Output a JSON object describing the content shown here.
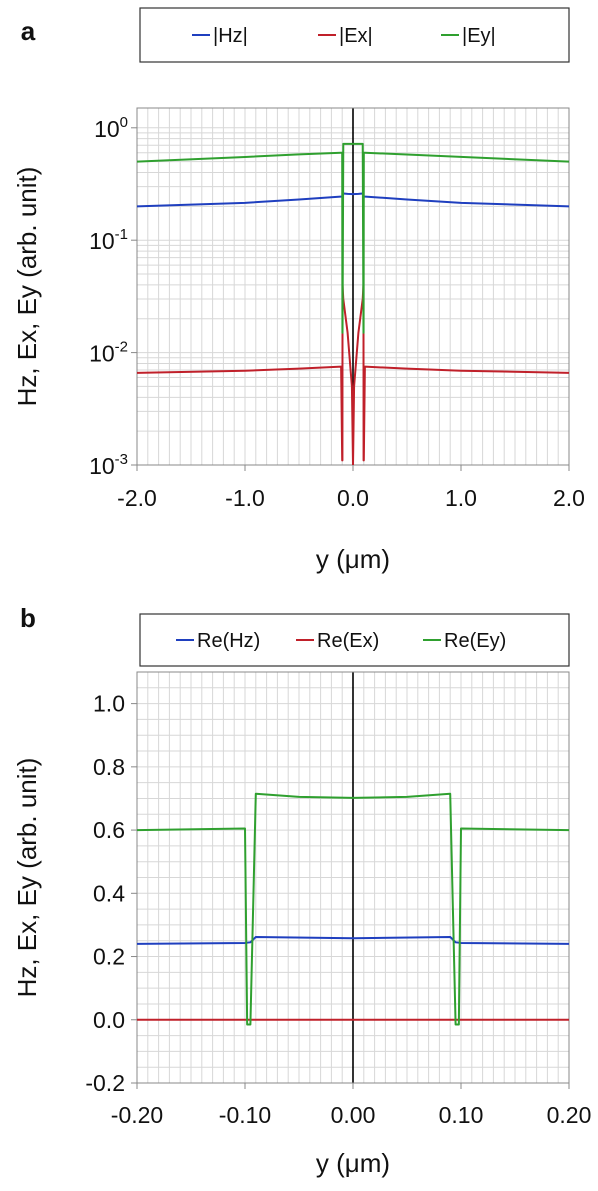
{
  "chart_data": [
    {
      "panel_label": "a",
      "type": "line",
      "xlabel": "y (μm)",
      "ylabel": "Hz, Ex, Ey (arb. unit)",
      "xlim": [
        -2.0,
        2.0
      ],
      "ylim": [
        0.001,
        1.5
      ],
      "yscale": "log",
      "grid": true,
      "legend_position": "top",
      "x_ticks": [
        -2.0,
        -1.0,
        0.0,
        1.0,
        2.0
      ],
      "x_tick_labels": [
        "-2.0",
        "-1.0",
        "0.0",
        "1.0",
        "2.0"
      ],
      "y_ticks": [
        {
          "value": 1,
          "base": "10",
          "exp": "0"
        },
        {
          "value": 0.1,
          "base": "10",
          "exp": "-1"
        },
        {
          "value": 0.01,
          "base": "10",
          "exp": "-2"
        },
        {
          "value": 0.001,
          "base": "10",
          "exp": "-3"
        }
      ],
      "series": [
        {
          "name": "|Hz|",
          "color": "#1f3fbf",
          "x": [
            -2.0,
            -1.0,
            -0.5,
            -0.1,
            -0.09,
            -0.05,
            0.0,
            0.05,
            0.09,
            0.1,
            0.5,
            1.0,
            2.0
          ],
          "y": [
            0.2,
            0.215,
            0.23,
            0.245,
            0.26,
            0.258,
            0.257,
            0.258,
            0.26,
            0.245,
            0.23,
            0.215,
            0.2
          ]
        },
        {
          "name": "|Ex|",
          "color": "#c0202a",
          "x": [
            -2.0,
            -1.0,
            -0.5,
            -0.11,
            -0.1,
            -0.098,
            -0.097,
            -0.09,
            -0.05,
            -0.01,
            0.0,
            0.01,
            0.05,
            0.09,
            0.097,
            0.098,
            0.1,
            0.11,
            0.5,
            1.0,
            2.0
          ],
          "y": [
            0.0066,
            0.0069,
            0.0072,
            0.0075,
            0.0011,
            0.0011,
            0.04,
            0.03,
            0.015,
            0.005,
            0.001,
            0.005,
            0.015,
            0.03,
            0.04,
            0.0011,
            0.0011,
            0.0075,
            0.0072,
            0.0069,
            0.0066
          ]
        },
        {
          "name": "|Ey|",
          "color": "#2fa02f",
          "x": [
            -2.0,
            -1.0,
            -0.5,
            -0.11,
            -0.1,
            -0.098,
            -0.097,
            -0.09,
            0.0,
            0.09,
            0.097,
            0.098,
            0.1,
            0.11,
            2.0
          ],
          "y": [
            0.5,
            0.55,
            0.58,
            0.6,
            0.6,
            0.015,
            0.015,
            0.72,
            0.72,
            0.72,
            0.015,
            0.015,
            0.6,
            0.6,
            0.5
          ]
        }
      ]
    },
    {
      "panel_label": "b",
      "type": "line",
      "xlabel": "y (μm)",
      "ylabel": "Hz, Ex, Ey (arb. unit)",
      "xlim": [
        -0.2,
        0.2
      ],
      "ylim": [
        -0.2,
        1.1
      ],
      "yscale": "linear",
      "grid": true,
      "legend_position": "top",
      "x_ticks": [
        -0.2,
        -0.1,
        0.0,
        0.1,
        0.2
      ],
      "x_tick_labels": [
        "-0.20",
        "-0.10",
        "0.00",
        "0.10",
        "0.20"
      ],
      "y_ticks": [
        {
          "value": 1.0,
          "label": "1.0"
        },
        {
          "value": 0.8,
          "label": "0.8"
        },
        {
          "value": 0.6,
          "label": "0.6"
        },
        {
          "value": 0.4,
          "label": "0.4"
        },
        {
          "value": 0.2,
          "label": "0.2"
        },
        {
          "value": 0.0,
          "label": "0.0"
        },
        {
          "value": -0.2,
          "label": "-0.2"
        }
      ],
      "series": [
        {
          "name": "Re(Hz)",
          "color": "#1f3fbf",
          "x": [
            -0.2,
            -0.1,
            -0.095,
            -0.09,
            0.0,
            0.09,
            0.095,
            0.1,
            0.2
          ],
          "y": [
            0.24,
            0.243,
            0.245,
            0.262,
            0.258,
            0.262,
            0.245,
            0.243,
            0.24
          ]
        },
        {
          "name": "Re(Ex)",
          "color": "#c0202a",
          "x": [
            -0.2,
            0.0,
            0.2
          ],
          "y": [
            0.0,
            0.0,
            0.0
          ]
        },
        {
          "name": "Re(Ey)",
          "color": "#2fa02f",
          "x": [
            -0.2,
            -0.1,
            -0.098,
            -0.095,
            -0.09,
            -0.05,
            0.0,
            0.05,
            0.09,
            0.095,
            0.098,
            0.1,
            0.2
          ],
          "y": [
            0.6,
            0.605,
            -0.015,
            -0.015,
            0.715,
            0.705,
            0.702,
            0.705,
            0.715,
            -0.015,
            -0.015,
            0.605,
            0.6
          ]
        }
      ]
    }
  ]
}
